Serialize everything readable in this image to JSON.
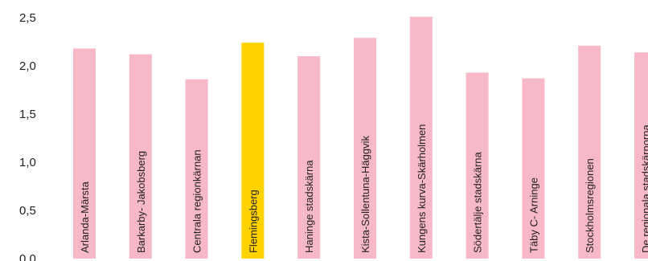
{
  "chart_data": {
    "type": "bar",
    "title": "",
    "xlabel": "",
    "ylabel": "",
    "ylim": [
      0,
      2.5
    ],
    "yticks": [
      "0,0",
      "0,5",
      "1,0",
      "1,5",
      "2,0",
      "2,5"
    ],
    "ytick_values": [
      0,
      0.5,
      1.0,
      1.5,
      2.0,
      2.5
    ],
    "grid": false,
    "legend": "none",
    "categories": [
      "Arlanda-Märsta",
      "Barkarby- Jakobsberg",
      "Centrala regionkärnan",
      "Flemingsberg",
      "Haninge stadskärna",
      "Kista-Sollentuna-Häggvik",
      "Kungens kurva-Skärholmen",
      "Södertälje stadskärna",
      "Täby C- Arninge",
      "Stockholmsregionen",
      "De regionala stadskärnorna"
    ],
    "values": [
      2.18,
      2.12,
      1.86,
      2.24,
      2.1,
      2.29,
      2.51,
      1.93,
      1.87,
      2.21,
      2.14
    ],
    "colors": {
      "default": "#f7b8c8",
      "highlight": "#ffd200"
    },
    "highlight_index": 3
  }
}
